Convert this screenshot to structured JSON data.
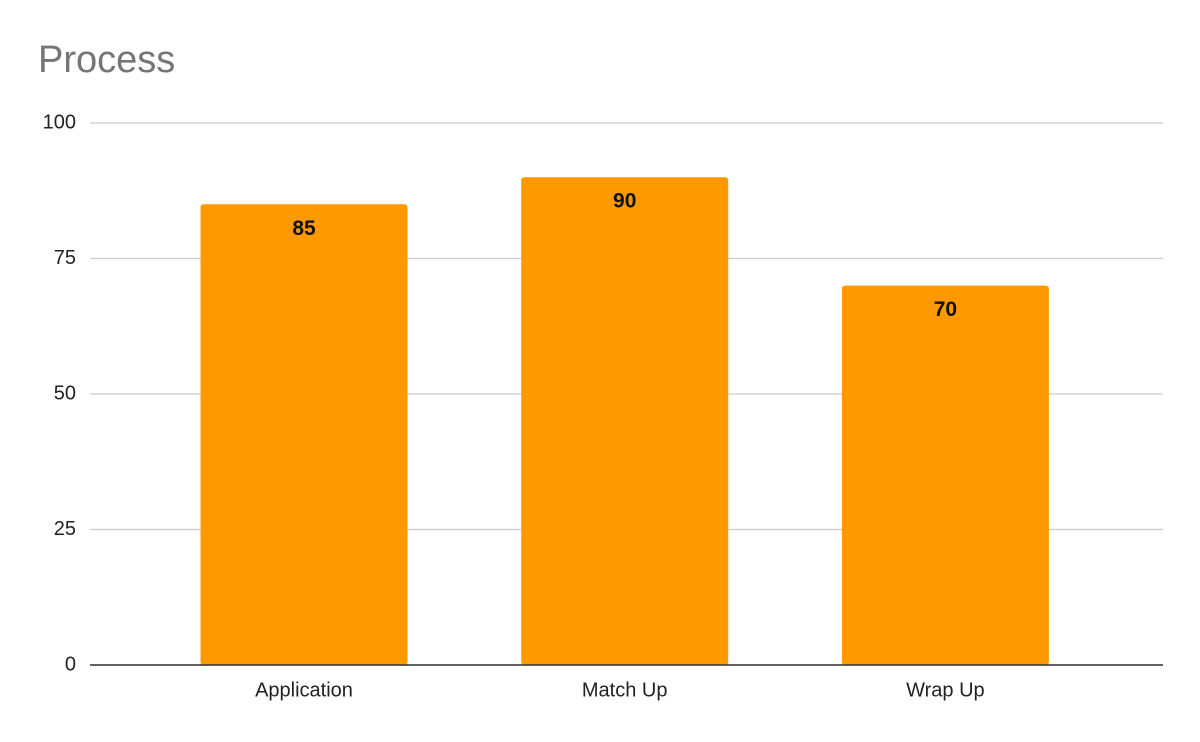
{
  "chart_data": {
    "type": "bar",
    "title": "Process",
    "categories": [
      "Application",
      "Match Up",
      "Wrap Up"
    ],
    "values": [
      85,
      90,
      70
    ],
    "color": "#ff9900",
    "ylim": [
      0,
      100
    ],
    "yticks": [
      0,
      25,
      50,
      75,
      100
    ],
    "grid": true
  }
}
